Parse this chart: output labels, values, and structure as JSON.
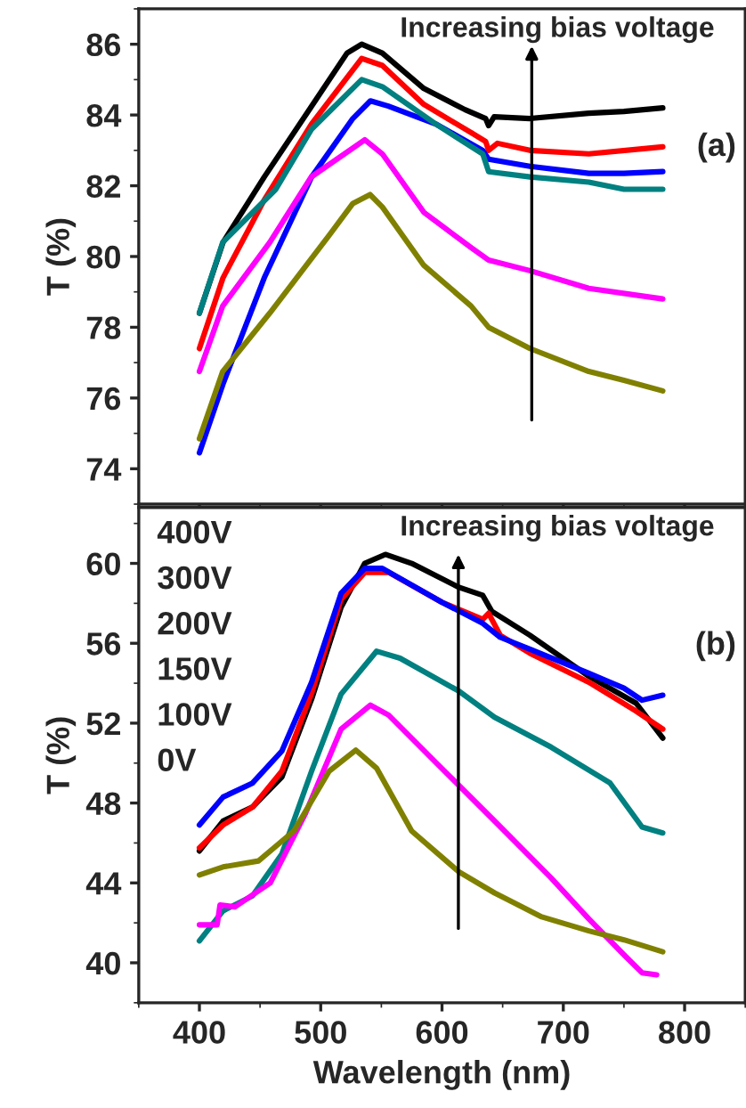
{
  "chart_data": [
    {
      "type": "line",
      "ylabel": "T (%)",
      "xlim": [
        350,
        850
      ],
      "ylim": [
        73,
        87
      ],
      "xticks": [
        400,
        500,
        600,
        700,
        800
      ],
      "yticks": [
        74,
        76,
        78,
        80,
        82,
        84,
        86
      ],
      "tick_labels": "y",
      "annotations": [
        "Increasing bias voltage",
        "(a)"
      ],
      "series": [
        {
          "color": "#000000",
          "x": [
            400,
            419.5,
            453.5,
            492.5,
            521.7,
            533.8,
            550.8,
            585,
            619,
            636,
            638.4,
            643,
            672.5,
            721,
            750,
            782
          ],
          "values": [
            78.4,
            80.4,
            82.25,
            84.25,
            85.75,
            86.0,
            85.75,
            84.75,
            84.15,
            83.9,
            83.7,
            83.95,
            83.9,
            84.05,
            84.1,
            84.2
          ]
        },
        {
          "color": "#ff0000",
          "x": [
            400,
            419.5,
            453.5,
            492.5,
            533.8,
            550.8,
            585,
            624,
            636,
            638.4,
            645.7,
            672.5,
            721,
            782
          ],
          "values": [
            77.4,
            79.4,
            81.6,
            83.75,
            85.6,
            85.4,
            84.3,
            83.5,
            83.25,
            83.0,
            83.2,
            83.0,
            82.9,
            83.1
          ]
        },
        {
          "color": "#0000ff",
          "x": [
            400,
            419.5,
            453.5,
            492.5,
            526.5,
            541,
            555.7,
            594.6,
            633.6,
            638.4,
            672.5,
            721,
            750,
            782
          ],
          "values": [
            74.45,
            76.4,
            79.4,
            82.25,
            83.9,
            84.4,
            84.25,
            83.75,
            83.0,
            82.75,
            82.55,
            82.35,
            82.35,
            82.4
          ]
        },
        {
          "color": "#008080",
          "x": [
            400,
            419.2,
            463,
            492.5,
            533.8,
            550.8,
            594.6,
            633.6,
            638.4,
            672.5,
            721,
            750,
            782
          ],
          "values": [
            78.4,
            80.4,
            81.9,
            83.6,
            85.0,
            84.8,
            83.75,
            82.9,
            82.4,
            82.25,
            82.1,
            81.9,
            81.9
          ]
        },
        {
          "color": "#ff00ff",
          "x": [
            400,
            419.2,
            458,
            492.2,
            536.3,
            550.8,
            585,
            624,
            638.4,
            672.5,
            721,
            782
          ],
          "values": [
            76.75,
            78.6,
            80.4,
            82.25,
            83.3,
            82.9,
            81.25,
            80.25,
            79.9,
            79.6,
            79.1,
            78.8
          ]
        },
        {
          "color": "#808000",
          "x": [
            400,
            419.2,
            458,
            507,
            526.5,
            540.7,
            550.8,
            585,
            624,
            638.4,
            672.5,
            721,
            750,
            782
          ],
          "values": [
            74.85,
            76.75,
            78.4,
            80.6,
            81.5,
            81.75,
            81.4,
            79.75,
            78.6,
            78.0,
            77.4,
            76.75,
            76.5,
            76.2
          ]
        }
      ]
    },
    {
      "type": "line",
      "ylabel": "T (%)",
      "xlabel": "Wavelength (nm)",
      "xlim": [
        350,
        850
      ],
      "ylim": [
        38,
        62.8
      ],
      "xticks": [
        400,
        500,
        600,
        700,
        800
      ],
      "yticks": [
        40,
        44,
        48,
        52,
        56,
        60
      ],
      "annotations": [
        "Increasing bias voltage",
        "(b)",
        "400V",
        "300V",
        "200V",
        "150V",
        "100V",
        "0V"
      ],
      "series": [
        {
          "color": "#000000",
          "x": [
            400,
            419.5,
            443.8,
            468,
            492.5,
            516.8,
            536.3,
            553.3,
            575,
            614,
            633.6,
            641,
            672.5,
            721,
            760,
            782
          ],
          "values": [
            45.6,
            47.1,
            47.8,
            49.3,
            53.2,
            57.8,
            60.0,
            60.45,
            60.0,
            58.8,
            58.4,
            57.6,
            56.4,
            54.35,
            53.0,
            51.25
          ]
        },
        {
          "color": "#ff0000",
          "x": [
            400,
            419.5,
            443.8,
            468,
            492.5,
            516.8,
            536.3,
            556,
            600,
            633.6,
            638.4,
            648,
            672.5,
            721,
            760,
            782
          ],
          "values": [
            45.75,
            46.9,
            47.8,
            49.6,
            53.5,
            58.2,
            59.55,
            59.55,
            58.05,
            57.2,
            57.5,
            56.4,
            55.5,
            54.05,
            52.6,
            51.7
          ]
        },
        {
          "color": "#0000ff",
          "x": [
            400,
            419.5,
            443.8,
            468,
            492.5,
            516.8,
            536.3,
            550.8,
            600,
            633.6,
            648,
            672.5,
            721,
            750,
            764.9,
            782
          ],
          "values": [
            46.9,
            48.3,
            49.0,
            50.6,
            54.05,
            58.5,
            59.75,
            59.75,
            58.05,
            57.0,
            56.3,
            55.7,
            54.5,
            53.75,
            53.15,
            53.4
          ]
        },
        {
          "color": "#008080",
          "x": [
            400,
            419.5,
            443.8,
            468,
            492.5,
            516.8,
            546,
            565.4,
            614,
            643.3,
            689.9,
            738.6,
            764.9,
            782
          ],
          "values": [
            41.1,
            42.6,
            43.35,
            45.45,
            49.6,
            53.45,
            55.6,
            55.25,
            53.6,
            52.3,
            50.8,
            49.0,
            46.8,
            46.5
          ]
        },
        {
          "color": "#ff00ff",
          "x": [
            400,
            414.6,
            417,
            429.2,
            458.4,
            487.6,
            516.8,
            541,
            556,
            594.6,
            643.3,
            689.9,
            721,
            750,
            764.9,
            777
          ],
          "values": [
            41.9,
            41.9,
            42.9,
            42.8,
            44.0,
            47.5,
            51.7,
            52.9,
            52.4,
            50.05,
            47.1,
            44.25,
            42.2,
            40.4,
            39.5,
            39.4
          ]
        },
        {
          "color": "#808000",
          "x": [
            400,
            419.5,
            448.7,
            477.9,
            507,
            529,
            546,
            575,
            614,
            643.3,
            682.2,
            721,
            750,
            782
          ],
          "values": [
            44.4,
            44.8,
            45.1,
            46.6,
            49.6,
            50.65,
            49.75,
            46.6,
            44.55,
            43.5,
            42.3,
            41.6,
            41.15,
            40.55
          ]
        }
      ]
    }
  ]
}
